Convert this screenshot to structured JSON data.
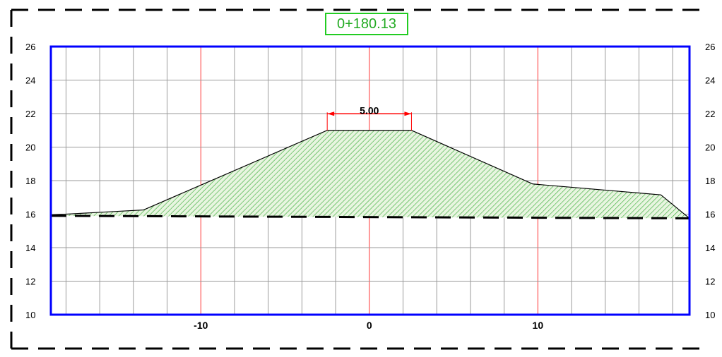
{
  "station": "0+180.13",
  "colors": {
    "frame": "#0000ff",
    "grid": "#9a9a9a",
    "gridMajor": "#ff3333",
    "fill": "#33aa33",
    "station": "#22aa22",
    "dim": "#ff0000"
  },
  "chart_data": {
    "type": "area",
    "xlim": [
      -18.9,
      19.0
    ],
    "ylim": [
      10,
      26
    ],
    "y_ticks": [
      "10",
      "12",
      "14",
      "16",
      "18",
      "20",
      "22",
      "24",
      "26"
    ],
    "x_tick_labels": [
      {
        "value": -10,
        "label": "-10"
      },
      {
        "value": 0,
        "label": "0"
      },
      {
        "value": 10,
        "label": "10"
      }
    ],
    "dimension": {
      "label": "5.00",
      "from": -2.5,
      "to": 2.5,
      "y": 22.2
    },
    "series": [
      {
        "kind": "design-section",
        "points": [
          [
            -18.9,
            15.95
          ],
          [
            -13.4,
            16.25
          ],
          [
            -2.5,
            21.0
          ],
          [
            2.5,
            21.0
          ],
          [
            9.7,
            17.8
          ],
          [
            17.3,
            17.15
          ],
          [
            19.0,
            15.75
          ]
        ]
      },
      {
        "kind": "existing-ground",
        "points": [
          [
            -18.9,
            15.9
          ],
          [
            19.0,
            15.75
          ]
        ]
      }
    ]
  }
}
